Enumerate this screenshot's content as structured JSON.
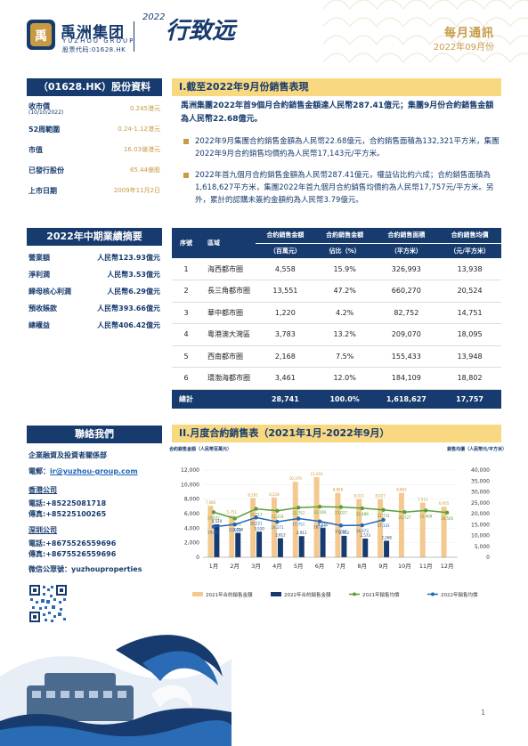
{
  "header": {
    "brand_name": "禹洲集团",
    "brand_en": "YUZHOU GROUP",
    "brand_code": "股票代码:01628.HK",
    "slogan": "行致远",
    "slogan_year": "2022",
    "monthly_title": "每月通訊",
    "monthly_date": "2022年09月份"
  },
  "stock": {
    "title": "（01628.HK）股份資料",
    "rows": [
      {
        "k": "收市價",
        "sub": "(10/10/2022)",
        "v": "0.245港元"
      },
      {
        "k": "52周範圍",
        "v": "0.24-1.12港元"
      },
      {
        "k": "市值",
        "v": "16.03億港元"
      },
      {
        "k": "已發行股份",
        "v": "65.44億股"
      },
      {
        "k": "上市日期",
        "v": "2009年11月2日"
      }
    ]
  },
  "interim": {
    "title": "2022年中期業績摘要",
    "rows": [
      {
        "k": "營業額",
        "v": "人民幣123.93億元"
      },
      {
        "k": "淨利潤",
        "v": "人民幣3.53億元"
      },
      {
        "k": "歸母核心利潤",
        "v": "人民幣6.29億元"
      },
      {
        "k": "預收賬款",
        "v": "人民幣393.66億元"
      },
      {
        "k": "總權益",
        "v": "人民幣406.42億元"
      }
    ]
  },
  "contact": {
    "title": "聯絡我們",
    "ir_dept": "企業融資及投資者關係部",
    "email_label": "電郵：",
    "email": "ir@yuzhou-group.com",
    "hk_head": "香港公司",
    "hk_tel": "電話:+85225081718",
    "hk_fax": "傳真:+85225100265",
    "sz_head": "深圳公司",
    "sz_tel": "電話:+8675526559696",
    "sz_fax": "傳真:+8675526559696",
    "wechat": "微信公眾號：yuzhouproperties"
  },
  "section1": {
    "title": "I.截至2022年9月份銷售表現",
    "summary": "禹洲集團2022年首9個月合約銷售金額達人民幣287.41億元；集團9月份合約銷售金額為人民幣22.68億元。",
    "bullets": [
      "2022年9月集團合約銷售金額為人民幣22.68億元，合約銷售面積為132,321平方米，集團2022年9月合約銷售均價約為人民幣17,143元/平方米。",
      "2022年首九個月合約銷售金額為人民幣287.41億元，權益佔比約六成；合約銷售面積為1,618,627平方米，集團2022年首九個月合約銷售均價約為人民幣17,757元/平方米。另外，累計的認購未簽約金額約為人民幣3.79億元。"
    ]
  },
  "table": {
    "headers": [
      "序號",
      "區域",
      "合約銷售金額",
      "合約銷售金額",
      "合約銷售面積",
      "合約銷售均價"
    ],
    "subheaders": [
      "",
      "",
      "（百萬元）",
      "佔比（%）",
      "（平方米）",
      "（元/平方米）"
    ],
    "rows": [
      [
        "1",
        "海西都市圈",
        "4,558",
        "15.9%",
        "326,993",
        "13,938"
      ],
      [
        "2",
        "長三角都市圈",
        "13,551",
        "47.2%",
        "660,270",
        "20,524"
      ],
      [
        "3",
        "華中都市圈",
        "1,220",
        "4.2%",
        "82,752",
        "14,751"
      ],
      [
        "4",
        "粵港澳大灣區",
        "3,783",
        "13.2%",
        "209,070",
        "18,095"
      ],
      [
        "5",
        "西南都市圈",
        "2,168",
        "7.5%",
        "155,433",
        "13,948"
      ],
      [
        "6",
        "環渤海都市圈",
        "3,461",
        "12.0%",
        "184,109",
        "18,802"
      ]
    ],
    "total": [
      "總計",
      "28,741",
      "100.0%",
      "1,618,627",
      "17,757"
    ]
  },
  "section2": {
    "title": "II.月度合約銷售表（2021年1月-2022年9月）"
  },
  "chart_data": {
    "type": "bar",
    "categories": [
      "1月",
      "2月",
      "3月",
      "4月",
      "5月",
      "6月",
      "7月",
      "8月",
      "9月",
      "10月",
      "11月",
      "12月"
    ],
    "ylabel_left": "合約銷售金額（人民幣百萬元）",
    "ylabel_right": "銷售均價（人民幣元/平方米）",
    "ylim_left": [
      0,
      12000
    ],
    "yticks_left": [
      "0",
      "2,000",
      "4,000",
      "6,000",
      "8,000",
      "10,000",
      "12,000"
    ],
    "ylim_right": [
      0,
      40000
    ],
    "yticks_right": [
      "0",
      "5,000",
      "10,000",
      "15,000",
      "20,000",
      "25,000",
      "30,000",
      "35,000",
      "40,000"
    ],
    "series": [
      {
        "name": "2021年合約銷售金額",
        "kind": "bar",
        "color": "#f3c98f",
        "values": [
          7086,
          5751,
          8161,
          8228,
          10379,
          11016,
          8858,
          8011,
          8027,
          8862,
          7513,
          6955
        ]
      },
      {
        "name": "2022年合約銷售金額",
        "kind": "bar",
        "color": "#173b6e",
        "values": [
          4520,
          3354,
          3520,
          2612,
          2911,
          4031,
          2952,
          2573,
          2268,
          null,
          null,
          null
        ]
      },
      {
        "name": "2021年銷售均價",
        "kind": "line",
        "color": "#5a9e3a",
        "values": [
          20672,
          17776,
          22213,
          21319,
          22757,
          23169,
          23027,
          22488,
          21733,
          20727,
          21468,
          20500
        ]
      },
      {
        "name": "2022年銷售均價",
        "kind": "line",
        "color": "#2266b8",
        "values": [
          14000,
          15023,
          18221,
          16271,
          17751,
          16462,
          14551,
          14673,
          17143,
          null,
          null,
          null
        ]
      }
    ]
  },
  "page_number": "1"
}
